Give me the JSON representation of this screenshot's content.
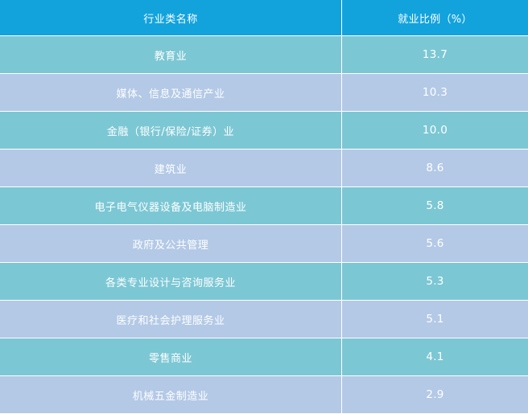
{
  "table": {
    "header": {
      "name": "行业类名称",
      "value": "就业比例（%）"
    },
    "rows": [
      {
        "name": "教育业",
        "value": "13.7"
      },
      {
        "name": "媒体、信息及通信产业",
        "value": "10.3"
      },
      {
        "name": "金融（银行/保险/证券）业",
        "value": "10.0"
      },
      {
        "name": "建筑业",
        "value": "8.6"
      },
      {
        "name": "电子电气仪器设备及电脑制造业",
        "value": "5.8"
      },
      {
        "name": "政府及公共管理",
        "value": "5.6"
      },
      {
        "name": "各类专业设计与咨询服务业",
        "value": "5.3"
      },
      {
        "name": "医疗和社会护理服务业",
        "value": "5.1"
      },
      {
        "name": "零售商业",
        "value": "4.1"
      },
      {
        "name": "机械五金制造业",
        "value": "2.9"
      }
    ]
  },
  "colors": {
    "header_bg": "#12a3dd",
    "row_odd_bg": "#7cc7d4",
    "row_even_bg": "#b3c9e6",
    "text": "#ffffff"
  }
}
